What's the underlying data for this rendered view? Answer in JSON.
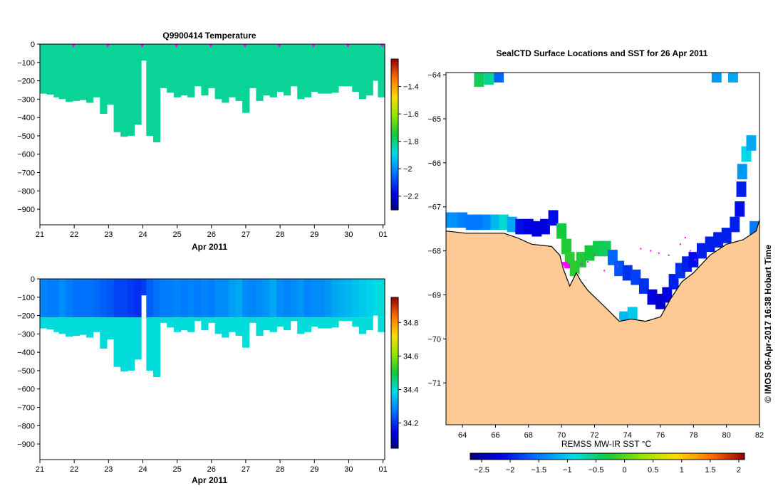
{
  "chart_data": [
    {
      "type": "heatmap",
      "title": "Q9900414  Temperature",
      "xlabel": "Apr 2011",
      "ylabel": "",
      "xticks": [
        "21",
        "22",
        "23",
        "24",
        "25",
        "26",
        "27",
        "28",
        "29",
        "30",
        "01"
      ],
      "xlim": [
        21,
        31.05
      ],
      "yticks": [
        "0",
        "−100",
        "−200",
        "−300",
        "−400",
        "−500",
        "−600",
        "−700",
        "−800",
        "−900"
      ],
      "ylim": [
        -985,
        0
      ],
      "profile_markers_day": [
        22,
        23,
        24,
        25,
        26,
        27,
        28,
        29,
        30,
        31
      ],
      "marker_color": "#ff00ff",
      "colorbar": {
        "range": [
          -2.3,
          -1.2
        ],
        "ticks": [
          "−2.2",
          "−2",
          "−1.8",
          "−1.6",
          "−1.4"
        ],
        "tick_values": [
          -2.2,
          -2.0,
          -1.8,
          -1.6,
          -1.4
        ]
      },
      "profiles": [
        {
          "day": 21.0,
          "depth": 270,
          "value": -1.82
        },
        {
          "day": 21.2,
          "depth": 275,
          "value": -1.82
        },
        {
          "day": 21.4,
          "depth": 290,
          "value": -1.82
        },
        {
          "day": 21.55,
          "depth": 300,
          "value": -1.82
        },
        {
          "day": 21.75,
          "depth": 315,
          "value": -1.82
        },
        {
          "day": 21.95,
          "depth": 310,
          "value": -1.82
        },
        {
          "day": 22.15,
          "depth": 305,
          "value": -1.82
        },
        {
          "day": 22.35,
          "depth": 320,
          "value": -1.82
        },
        {
          "day": 22.55,
          "depth": 290,
          "value": -1.82
        },
        {
          "day": 22.75,
          "depth": 380,
          "value": -1.82
        },
        {
          "day": 22.95,
          "depth": 330,
          "value": -1.82
        },
        {
          "day": 23.15,
          "depth": 480,
          "value": -1.82
        },
        {
          "day": 23.35,
          "depth": 505,
          "value": -1.82
        },
        {
          "day": 23.55,
          "depth": 500,
          "value": -1.82
        },
        {
          "day": 23.75,
          "depth": 440,
          "value": -1.82
        },
        {
          "day": 23.95,
          "depth": 90,
          "value": -1.82
        },
        {
          "day": 24.1,
          "depth": 500,
          "value": -1.82
        },
        {
          "day": 24.3,
          "depth": 535,
          "value": -1.82
        },
        {
          "day": 24.5,
          "depth": 240,
          "value": -1.82
        },
        {
          "day": 24.7,
          "depth": 265,
          "value": -1.82
        },
        {
          "day": 24.9,
          "depth": 290,
          "value": -1.82
        },
        {
          "day": 25.1,
          "depth": 280,
          "value": -1.82
        },
        {
          "day": 25.3,
          "depth": 290,
          "value": -1.82
        },
        {
          "day": 25.5,
          "depth": 230,
          "value": -1.82
        },
        {
          "day": 25.7,
          "depth": 280,
          "value": -1.82
        },
        {
          "day": 25.9,
          "depth": 240,
          "value": -1.82
        },
        {
          "day": 26.1,
          "depth": 300,
          "value": -1.82
        },
        {
          "day": 26.3,
          "depth": 320,
          "value": -1.82
        },
        {
          "day": 26.5,
          "depth": 290,
          "value": -1.82
        },
        {
          "day": 26.7,
          "depth": 310,
          "value": -1.82
        },
        {
          "day": 26.9,
          "depth": 375,
          "value": -1.82
        },
        {
          "day": 27.1,
          "depth": 240,
          "value": -1.82
        },
        {
          "day": 27.3,
          "depth": 310,
          "value": -1.82
        },
        {
          "day": 27.5,
          "depth": 280,
          "value": -1.82
        },
        {
          "day": 27.7,
          "depth": 290,
          "value": -1.82
        },
        {
          "day": 27.9,
          "depth": 260,
          "value": -1.82
        },
        {
          "day": 28.1,
          "depth": 280,
          "value": -1.82
        },
        {
          "day": 28.3,
          "depth": 230,
          "value": -1.82
        },
        {
          "day": 28.5,
          "depth": 300,
          "value": -1.82
        },
        {
          "day": 28.7,
          "depth": 290,
          "value": -1.82
        },
        {
          "day": 28.9,
          "depth": 260,
          "value": -1.82
        },
        {
          "day": 29.1,
          "depth": 270,
          "value": -1.82
        },
        {
          "day": 29.3,
          "depth": 270,
          "value": -1.82
        },
        {
          "day": 29.5,
          "depth": 265,
          "value": -1.82
        },
        {
          "day": 29.7,
          "depth": 230,
          "value": -1.82
        },
        {
          "day": 29.9,
          "depth": 230,
          "value": -1.82
        },
        {
          "day": 30.1,
          "depth": 260,
          "value": -1.82
        },
        {
          "day": 30.3,
          "depth": 300,
          "value": -1.82
        },
        {
          "day": 30.5,
          "depth": 280,
          "value": -1.82
        },
        {
          "day": 30.7,
          "depth": 200,
          "value": -1.82
        },
        {
          "day": 30.85,
          "depth": 290,
          "value": -1.82
        }
      ]
    },
    {
      "type": "heatmap",
      "title": "",
      "xlabel": "Apr 2011",
      "ylabel": "",
      "xticks": [
        "21",
        "22",
        "23",
        "24",
        "25",
        "26",
        "27",
        "28",
        "29",
        "30",
        "01"
      ],
      "xlim": [
        21,
        31.05
      ],
      "yticks": [
        "0",
        "−100",
        "−200",
        "−300",
        "−400",
        "−500",
        "−600",
        "−700",
        "−800",
        "−900"
      ],
      "ylim": [
        -985,
        0
      ],
      "colorbar": {
        "range": [
          34.05,
          34.95
        ],
        "ticks": [
          "34.2",
          "34.4",
          "34.6",
          "34.8"
        ],
        "tick_values": [
          34.2,
          34.4,
          34.6,
          34.8
        ]
      },
      "surface_value": 34.28,
      "deep_value": 34.4,
      "profiles": [
        {
          "day": 21.0,
          "depth": 270,
          "value": 34.29
        },
        {
          "day": 21.2,
          "depth": 275,
          "value": 34.28
        },
        {
          "day": 21.4,
          "depth": 290,
          "value": 34.28
        },
        {
          "day": 21.55,
          "depth": 300,
          "value": 34.3
        },
        {
          "day": 21.75,
          "depth": 315,
          "value": 34.28
        },
        {
          "day": 21.95,
          "depth": 310,
          "value": 34.27
        },
        {
          "day": 22.15,
          "depth": 305,
          "value": 34.27
        },
        {
          "day": 22.35,
          "depth": 320,
          "value": 34.27
        },
        {
          "day": 22.55,
          "depth": 290,
          "value": 34.26
        },
        {
          "day": 22.75,
          "depth": 380,
          "value": 34.25
        },
        {
          "day": 22.95,
          "depth": 330,
          "value": 34.24
        },
        {
          "day": 23.15,
          "depth": 480,
          "value": 34.22
        },
        {
          "day": 23.35,
          "depth": 505,
          "value": 34.22
        },
        {
          "day": 23.55,
          "depth": 500,
          "value": 34.21
        },
        {
          "day": 23.75,
          "depth": 440,
          "value": 34.2
        },
        {
          "day": 23.95,
          "depth": 90,
          "value": 34.21
        },
        {
          "day": 24.1,
          "depth": 500,
          "value": 34.25
        },
        {
          "day": 24.3,
          "depth": 535,
          "value": 34.27
        },
        {
          "day": 24.5,
          "depth": 240,
          "value": 34.28
        },
        {
          "day": 24.7,
          "depth": 265,
          "value": 34.28
        },
        {
          "day": 24.9,
          "depth": 290,
          "value": 34.29
        },
        {
          "day": 25.1,
          "depth": 280,
          "value": 34.28
        },
        {
          "day": 25.3,
          "depth": 290,
          "value": 34.29
        },
        {
          "day": 25.5,
          "depth": 230,
          "value": 34.28
        },
        {
          "day": 25.7,
          "depth": 280,
          "value": 34.29
        },
        {
          "day": 25.9,
          "depth": 240,
          "value": 34.28
        },
        {
          "day": 26.1,
          "depth": 300,
          "value": 34.3
        },
        {
          "day": 26.3,
          "depth": 320,
          "value": 34.3
        },
        {
          "day": 26.5,
          "depth": 290,
          "value": 34.32
        },
        {
          "day": 26.7,
          "depth": 310,
          "value": 34.33
        },
        {
          "day": 26.9,
          "depth": 375,
          "value": 34.3
        },
        {
          "day": 27.1,
          "depth": 240,
          "value": 34.29
        },
        {
          "day": 27.3,
          "depth": 310,
          "value": 34.3
        },
        {
          "day": 27.5,
          "depth": 280,
          "value": 34.31
        },
        {
          "day": 27.7,
          "depth": 290,
          "value": 34.33
        },
        {
          "day": 27.9,
          "depth": 260,
          "value": 34.3
        },
        {
          "day": 28.1,
          "depth": 280,
          "value": 34.29
        },
        {
          "day": 28.3,
          "depth": 230,
          "value": 34.3
        },
        {
          "day": 28.5,
          "depth": 300,
          "value": 34.31
        },
        {
          "day": 28.7,
          "depth": 290,
          "value": 34.29
        },
        {
          "day": 28.9,
          "depth": 260,
          "value": 34.3
        },
        {
          "day": 29.1,
          "depth": 270,
          "value": 34.3
        },
        {
          "day": 29.3,
          "depth": 270,
          "value": 34.31
        },
        {
          "day": 29.5,
          "depth": 265,
          "value": 34.33
        },
        {
          "day": 29.7,
          "depth": 230,
          "value": 34.34
        },
        {
          "day": 29.9,
          "depth": 230,
          "value": 34.35
        },
        {
          "day": 30.1,
          "depth": 260,
          "value": 34.36
        },
        {
          "day": 30.3,
          "depth": 300,
          "value": 34.37
        },
        {
          "day": 30.5,
          "depth": 280,
          "value": 34.38
        },
        {
          "day": 30.7,
          "depth": 200,
          "value": 34.39
        },
        {
          "day": 30.85,
          "depth": 290,
          "value": 34.4
        }
      ]
    },
    {
      "type": "map",
      "title": "SealCTD Surface Locations and SST for 26 Apr 2011",
      "xlabel": "REMSS MW-IR SST °C",
      "xticks": [
        "64",
        "66",
        "68",
        "70",
        "72",
        "74",
        "76",
        "78",
        "80",
        "82"
      ],
      "xtick_values": [
        64,
        66,
        68,
        70,
        72,
        74,
        76,
        78,
        80,
        82
      ],
      "xlim": [
        63,
        82
      ],
      "yticks": [
        "−64",
        "−65",
        "−66",
        "−67",
        "−68",
        "−69",
        "−70",
        "−71"
      ],
      "ytick_values": [
        -64,
        -65,
        -66,
        -67,
        -68,
        -69,
        -70,
        -71
      ],
      "ylim": [
        -71.95,
        -63.95
      ],
      "land_color": "#fdca96",
      "ice_color": "#ffffff",
      "colorbar": {
        "range": [
          -2.7,
          2.1
        ],
        "ticks": [
          "−2.5",
          "−2",
          "−1.5",
          "−1",
          "−0.5",
          "0",
          "0.5",
          "1",
          "1.5",
          "2"
        ],
        "tick_values": [
          -2.5,
          -2.0,
          -1.5,
          -1.0,
          -0.5,
          0,
          0.5,
          1.0,
          1.5,
          2.0
        ]
      },
      "coastline": [
        [
          63,
          -67.55
        ],
        [
          64.2,
          -67.6
        ],
        [
          66.5,
          -67.6
        ],
        [
          67.3,
          -67.7
        ],
        [
          68.2,
          -67.85
        ],
        [
          69.4,
          -67.9
        ],
        [
          69.9,
          -68.1
        ],
        [
          70.1,
          -68.4
        ],
        [
          70.5,
          -68.8
        ],
        [
          70.9,
          -68.5
        ],
        [
          71.2,
          -68.7
        ],
        [
          71.6,
          -68.9
        ],
        [
          72.7,
          -69.3
        ],
        [
          73.5,
          -69.6
        ],
        [
          74.2,
          -69.55
        ],
        [
          75.1,
          -69.6
        ],
        [
          76.0,
          -69.5
        ],
        [
          76.6,
          -69.1
        ],
        [
          77.3,
          -68.7
        ],
        [
          78.0,
          -68.5
        ],
        [
          79.0,
          -68.1
        ],
        [
          80.0,
          -67.85
        ],
        [
          81.0,
          -67.75
        ],
        [
          81.8,
          -67.55
        ],
        [
          82,
          -67.3
        ]
      ],
      "sst_cells": [
        [
          63.0,
          -67.3,
          -1.35
        ],
        [
          63.5,
          -67.3,
          -1.35
        ],
        [
          64.0,
          -67.3,
          -1.45
        ],
        [
          64.5,
          -67.35,
          -1.5
        ],
        [
          65.0,
          -67.35,
          -1.5
        ],
        [
          65.5,
          -67.35,
          -1.4
        ],
        [
          66.0,
          -67.35,
          -1.1
        ],
        [
          66.5,
          -67.35,
          -0.8
        ],
        [
          67.0,
          -67.4,
          -1.2
        ],
        [
          67.5,
          -67.45,
          -2.1
        ],
        [
          68.0,
          -67.45,
          -2.2
        ],
        [
          68.5,
          -67.5,
          -2.2
        ],
        [
          69.0,
          -67.45,
          -2.2
        ],
        [
          69.5,
          -67.25,
          -2.1
        ],
        [
          70.0,
          -67.55,
          -0.3
        ],
        [
          70.3,
          -67.9,
          -0.25
        ],
        [
          70.5,
          -68.2,
          -0.2
        ],
        [
          70.8,
          -68.4,
          -0.2
        ],
        [
          71.2,
          -68.2,
          -0.25
        ],
        [
          71.7,
          -68.05,
          -0.3
        ],
        [
          72.2,
          -67.95,
          -0.35
        ],
        [
          72.7,
          -67.95,
          -0.4
        ],
        [
          73.1,
          -68.15,
          -1.6
        ],
        [
          73.5,
          -68.4,
          -1.7
        ],
        [
          74.0,
          -68.5,
          -1.9
        ],
        [
          74.5,
          -68.6,
          -1.8
        ],
        [
          75.0,
          -68.8,
          -1.9
        ],
        [
          75.5,
          -69.05,
          -2.2
        ],
        [
          76.0,
          -69.15,
          -2.3
        ],
        [
          76.4,
          -69.0,
          -2.2
        ],
        [
          76.8,
          -68.7,
          -2.0
        ],
        [
          77.2,
          -68.45,
          -1.9
        ],
        [
          77.6,
          -68.3,
          -2.0
        ],
        [
          78.0,
          -68.2,
          -2.1
        ],
        [
          78.5,
          -68.0,
          -2.0
        ],
        [
          79.0,
          -67.85,
          -2.0
        ],
        [
          79.5,
          -67.75,
          -2.0
        ],
        [
          80.0,
          -67.65,
          -2.0
        ],
        [
          80.5,
          -67.4,
          -2.0
        ],
        [
          80.8,
          -67.05,
          -2.1
        ],
        [
          80.9,
          -66.6,
          -2.0
        ],
        [
          80.95,
          -66.2,
          -1.3
        ],
        [
          81.2,
          -65.8,
          -0.9
        ],
        [
          81.5,
          -65.55,
          -1.2
        ],
        [
          81.7,
          -67.5,
          -1.5
        ],
        [
          73.8,
          -69.55,
          -1.1
        ],
        [
          74.3,
          -69.45,
          -1.0
        ],
        [
          65.0,
          -64.1,
          -0.4
        ],
        [
          65.6,
          -64.05,
          -0.6
        ],
        [
          66.2,
          -64.0,
          -1.6
        ],
        [
          79.4,
          -64.0,
          -1.3
        ],
        [
          80.4,
          -64.0,
          -1.2
        ]
      ],
      "seal_locations": [
        [
          70.2,
          -68.3
        ],
        [
          70.35,
          -68.35
        ]
      ],
      "track_points": [
        [
          71.2,
          -68.3
        ],
        [
          71.6,
          -68.25
        ],
        [
          72.0,
          -68.1
        ],
        [
          72.6,
          -68.45
        ],
        [
          73.4,
          -68.35
        ],
        [
          74.8,
          -67.95
        ],
        [
          75.4,
          -68.0
        ],
        [
          75.9,
          -68.05
        ],
        [
          76.5,
          -68.1
        ],
        [
          77.2,
          -67.85
        ],
        [
          77.5,
          -67.7
        ],
        [
          77.8,
          -68.0
        ],
        [
          78.1,
          -68.2
        ]
      ],
      "seal_color": "#ff00ff"
    }
  ],
  "credit": "© IMOS 06-Apr-2017 16:38 Hobart Time"
}
